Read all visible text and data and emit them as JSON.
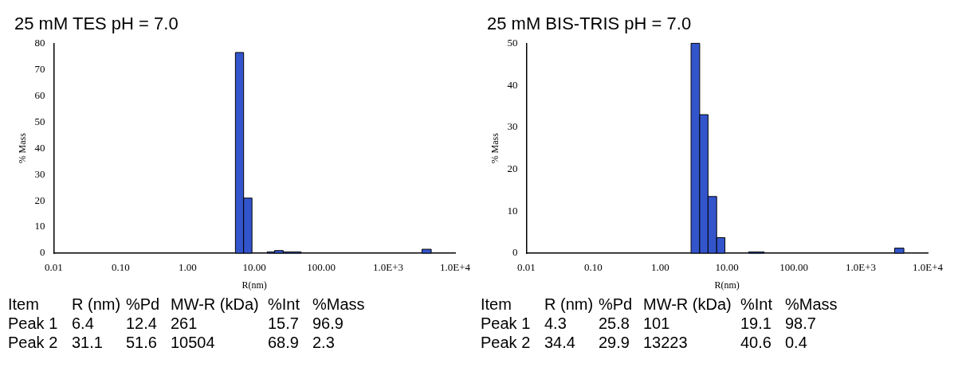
{
  "chart_data": [
    {
      "type": "histogram",
      "title": "25 mM TES pH = 7.0",
      "xlabel": "R(nm)",
      "ylabel": "% Mass",
      "log": "x",
      "grid": false,
      "legend": false,
      "color": "#3355cc",
      "bins": [
        5.2,
        6.9,
        9.2,
        15.5,
        20,
        27,
        50,
        3200,
        4400
      ],
      "values": [
        76.5,
        21,
        0,
        0.5,
        1,
        0.5,
        0,
        1.5
      ],
      "xlim": [
        0.01,
        10000
      ],
      "xticks": [
        {
          "value": 0.01,
          "label": "0.01"
        },
        {
          "value": 0.1,
          "label": "0.10"
        },
        {
          "value": 1,
          "label": "1.00"
        },
        {
          "value": 10,
          "label": "10.00"
        },
        {
          "value": 100,
          "label": "100.00"
        },
        {
          "value": 1000,
          "label": "1.0E+3"
        },
        {
          "value": 10000,
          "label": "1.0E+4"
        }
      ],
      "ylim": [
        0,
        80
      ],
      "yticks": [
        0,
        10,
        20,
        30,
        40,
        50,
        60,
        70,
        80
      ],
      "annotations": [
        "Item",
        "R (nm)",
        "%Pd",
        "MW-R (kDa)",
        "%Int",
        "%Mass",
        "Peak 1",
        "6.4",
        "12.4",
        "261",
        "15.7",
        "96.9",
        "Peak 2",
        "31.1",
        "51.6",
        "10504",
        "68.9",
        "2.3"
      ]
    },
    {
      "type": "histogram",
      "title": "25 mM BIS-TRIS pH = 7.0",
      "xlabel": "R(nm)",
      "ylabel": "% Mass",
      "log": "x",
      "grid": false,
      "legend": false,
      "color": "#3355cc",
      "bins": [
        2.9,
        3.9,
        5.2,
        7,
        9.3,
        21,
        36,
        3200,
        4400
      ],
      "values": [
        50,
        33,
        13.5,
        3.7,
        0,
        0.3,
        0,
        1.2
      ],
      "xlim": [
        0.01,
        10000
      ],
      "xticks": [
        {
          "value": 0.01,
          "label": "0.01"
        },
        {
          "value": 0.1,
          "label": "0.10"
        },
        {
          "value": 1,
          "label": "1.00"
        },
        {
          "value": 10,
          "label": "10.00"
        },
        {
          "value": 100,
          "label": "100.00"
        },
        {
          "value": 1000,
          "label": "1.0E+3"
        },
        {
          "value": 10000,
          "label": "1.0E+4"
        }
      ],
      "ylim": [
        0,
        50
      ],
      "yticks": [
        0,
        10,
        20,
        30,
        40,
        50
      ],
      "annotations": [
        "Item",
        "R (nm)",
        "%Pd",
        "MW-R (kDa)",
        "%Int",
        "%Mass",
        "Peak 1",
        "4.3",
        "25.8",
        "101",
        "19.1",
        "98.7",
        "Peak 2",
        "34.4",
        "29.9",
        "13223",
        "40.6",
        "0.4"
      ]
    }
  ]
}
